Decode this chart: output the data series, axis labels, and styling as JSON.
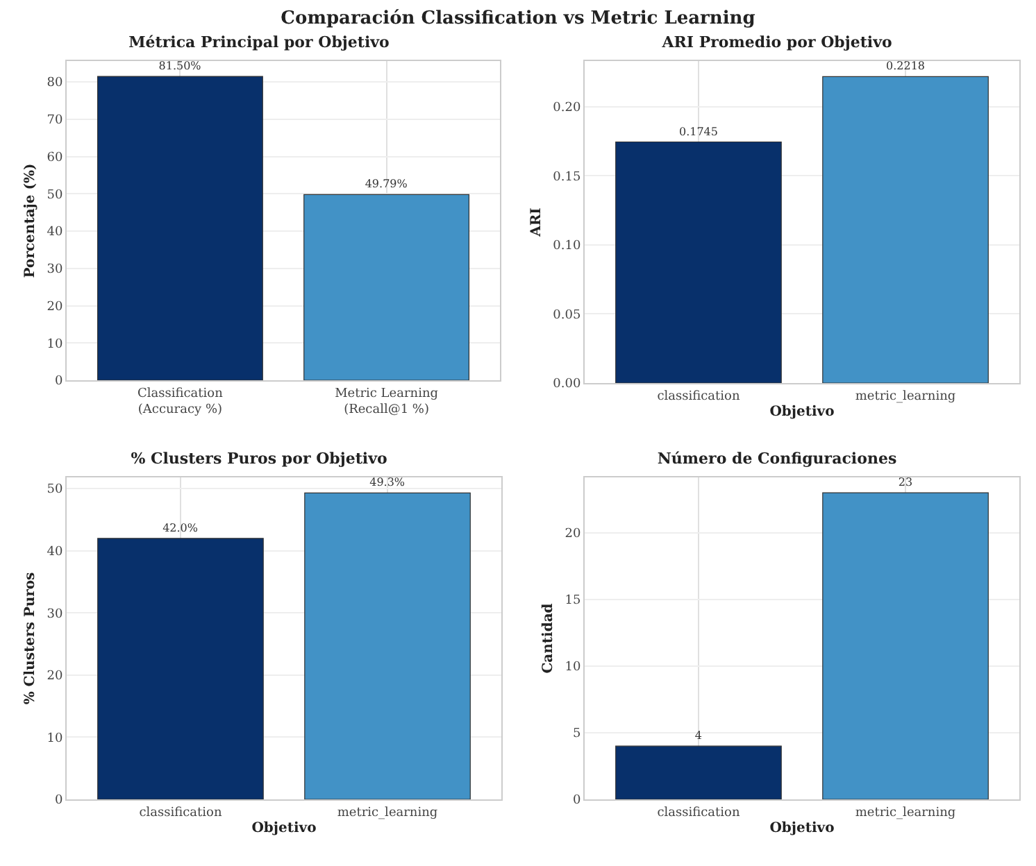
{
  "chart_data": [
    {
      "type": "bar",
      "annotations": [
        "Comparación Classification vs Metric Learning"
      ],
      "title": "Métrica Principal por Objetivo",
      "ylabel": "Porcentaje (%)",
      "categories": [
        "Classification\n(Accuracy %)",
        "Metric Learning\n(Recall@1 %)"
      ],
      "values": [
        81.5,
        49.79
      ],
      "colors": [
        "#08306b",
        "#4292c6"
      ],
      "value_labels": [
        "81.50%",
        "49.79%"
      ],
      "ylim": [
        0,
        85.6
      ],
      "yticks": [
        0,
        10,
        20,
        30,
        40,
        50,
        60,
        70,
        80
      ],
      "grid": true
    },
    {
      "type": "bar",
      "title": "ARI Promedio por Objetivo",
      "xlabel": "Objetivo",
      "ylabel": "ARI",
      "categories": [
        "classification",
        "metric_learning"
      ],
      "values": [
        0.1745,
        0.2218
      ],
      "colors": [
        "#08306b",
        "#4292c6"
      ],
      "data_labels": true,
      "ylim": [
        0,
        0.233
      ],
      "yticks": [
        "0.00",
        "0.05",
        "0.10",
        "0.15",
        "0.20"
      ],
      "grid": true
    },
    {
      "type": "bar",
      "title": "% Clusters Puros por Objetivo",
      "xlabel": "Objetivo",
      "ylabel": "% Clusters Puros",
      "categories": [
        "classification",
        "metric_learning"
      ],
      "values": [
        42.0,
        49.3
      ],
      "colors": [
        "#08306b",
        "#4292c6"
      ],
      "value_labels": [
        "42.0%",
        "49.3%"
      ],
      "ylim": [
        0,
        51.8
      ],
      "yticks": [
        0,
        10,
        20,
        30,
        40,
        50
      ],
      "grid": true
    },
    {
      "type": "bar",
      "title": "Número de Configuraciones",
      "xlabel": "Objetivo",
      "ylabel": "Cantidad",
      "categories": [
        "classification",
        "metric_learning"
      ],
      "values": [
        4,
        23
      ],
      "colors": [
        "#08306b",
        "#4292c6"
      ],
      "data_labels": true,
      "ylim": [
        0,
        24.15
      ],
      "yticks": [
        0,
        5,
        10,
        15,
        20
      ],
      "grid": true
    }
  ]
}
